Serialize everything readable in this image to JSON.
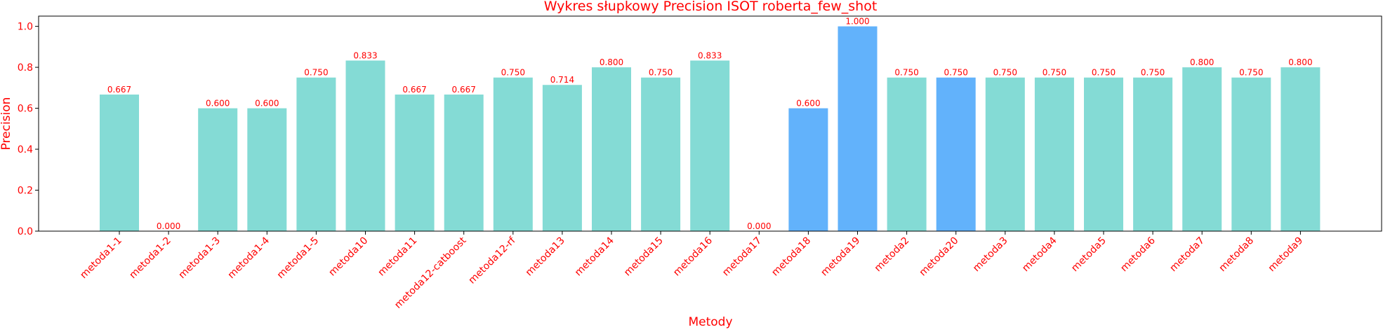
{
  "chart_data": {
    "type": "bar",
    "title": "Wykres słupkowy Precision ISOT roberta_few_shot",
    "xlabel": "Metody",
    "ylabel": "Precision",
    "ylim": [
      0,
      1.05
    ],
    "yticks": [
      0.0,
      0.2,
      0.4,
      0.6,
      0.8,
      1.0
    ],
    "ytick_labels": [
      "0.0",
      "0.2",
      "0.4",
      "0.6",
      "0.8",
      "1.0"
    ],
    "grid": false,
    "legend": "none",
    "colors": {
      "text": "#ff0000",
      "bar_default": "#84dbd5",
      "bar_highlight": "#62b2fb",
      "axis": "#000000"
    },
    "categories": [
      "metoda1-1",
      "metoda1-2",
      "metoda1-3",
      "metoda1-4",
      "metoda1-5",
      "metoda10",
      "metoda11",
      "metoda12-catboost",
      "metoda12-rf",
      "metoda13",
      "metoda14",
      "metoda15",
      "metoda16",
      "metoda17",
      "metoda18",
      "metoda19",
      "metoda2",
      "metoda20",
      "metoda3",
      "metoda4",
      "metoda5",
      "metoda6",
      "metoda7",
      "metoda8",
      "metoda9"
    ],
    "values": [
      0.667,
      0.0,
      0.6,
      0.6,
      0.75,
      0.833,
      0.667,
      0.667,
      0.75,
      0.714,
      0.8,
      0.75,
      0.833,
      0.0,
      0.6,
      1.0,
      0.75,
      0.75,
      0.75,
      0.75,
      0.75,
      0.75,
      0.8,
      0.75,
      0.8
    ],
    "value_labels": [
      "0.667",
      "0.000",
      "0.600",
      "0.600",
      "0.750",
      "0.833",
      "0.667",
      "0.667",
      "0.750",
      "0.714",
      "0.800",
      "0.750",
      "0.833",
      "0.000",
      "0.600",
      "1.000",
      "0.750",
      "0.750",
      "0.750",
      "0.750",
      "0.750",
      "0.750",
      "0.800",
      "0.750",
      "0.800"
    ],
    "highlighted": [
      "metoda18",
      "metoda19",
      "metoda20"
    ]
  }
}
